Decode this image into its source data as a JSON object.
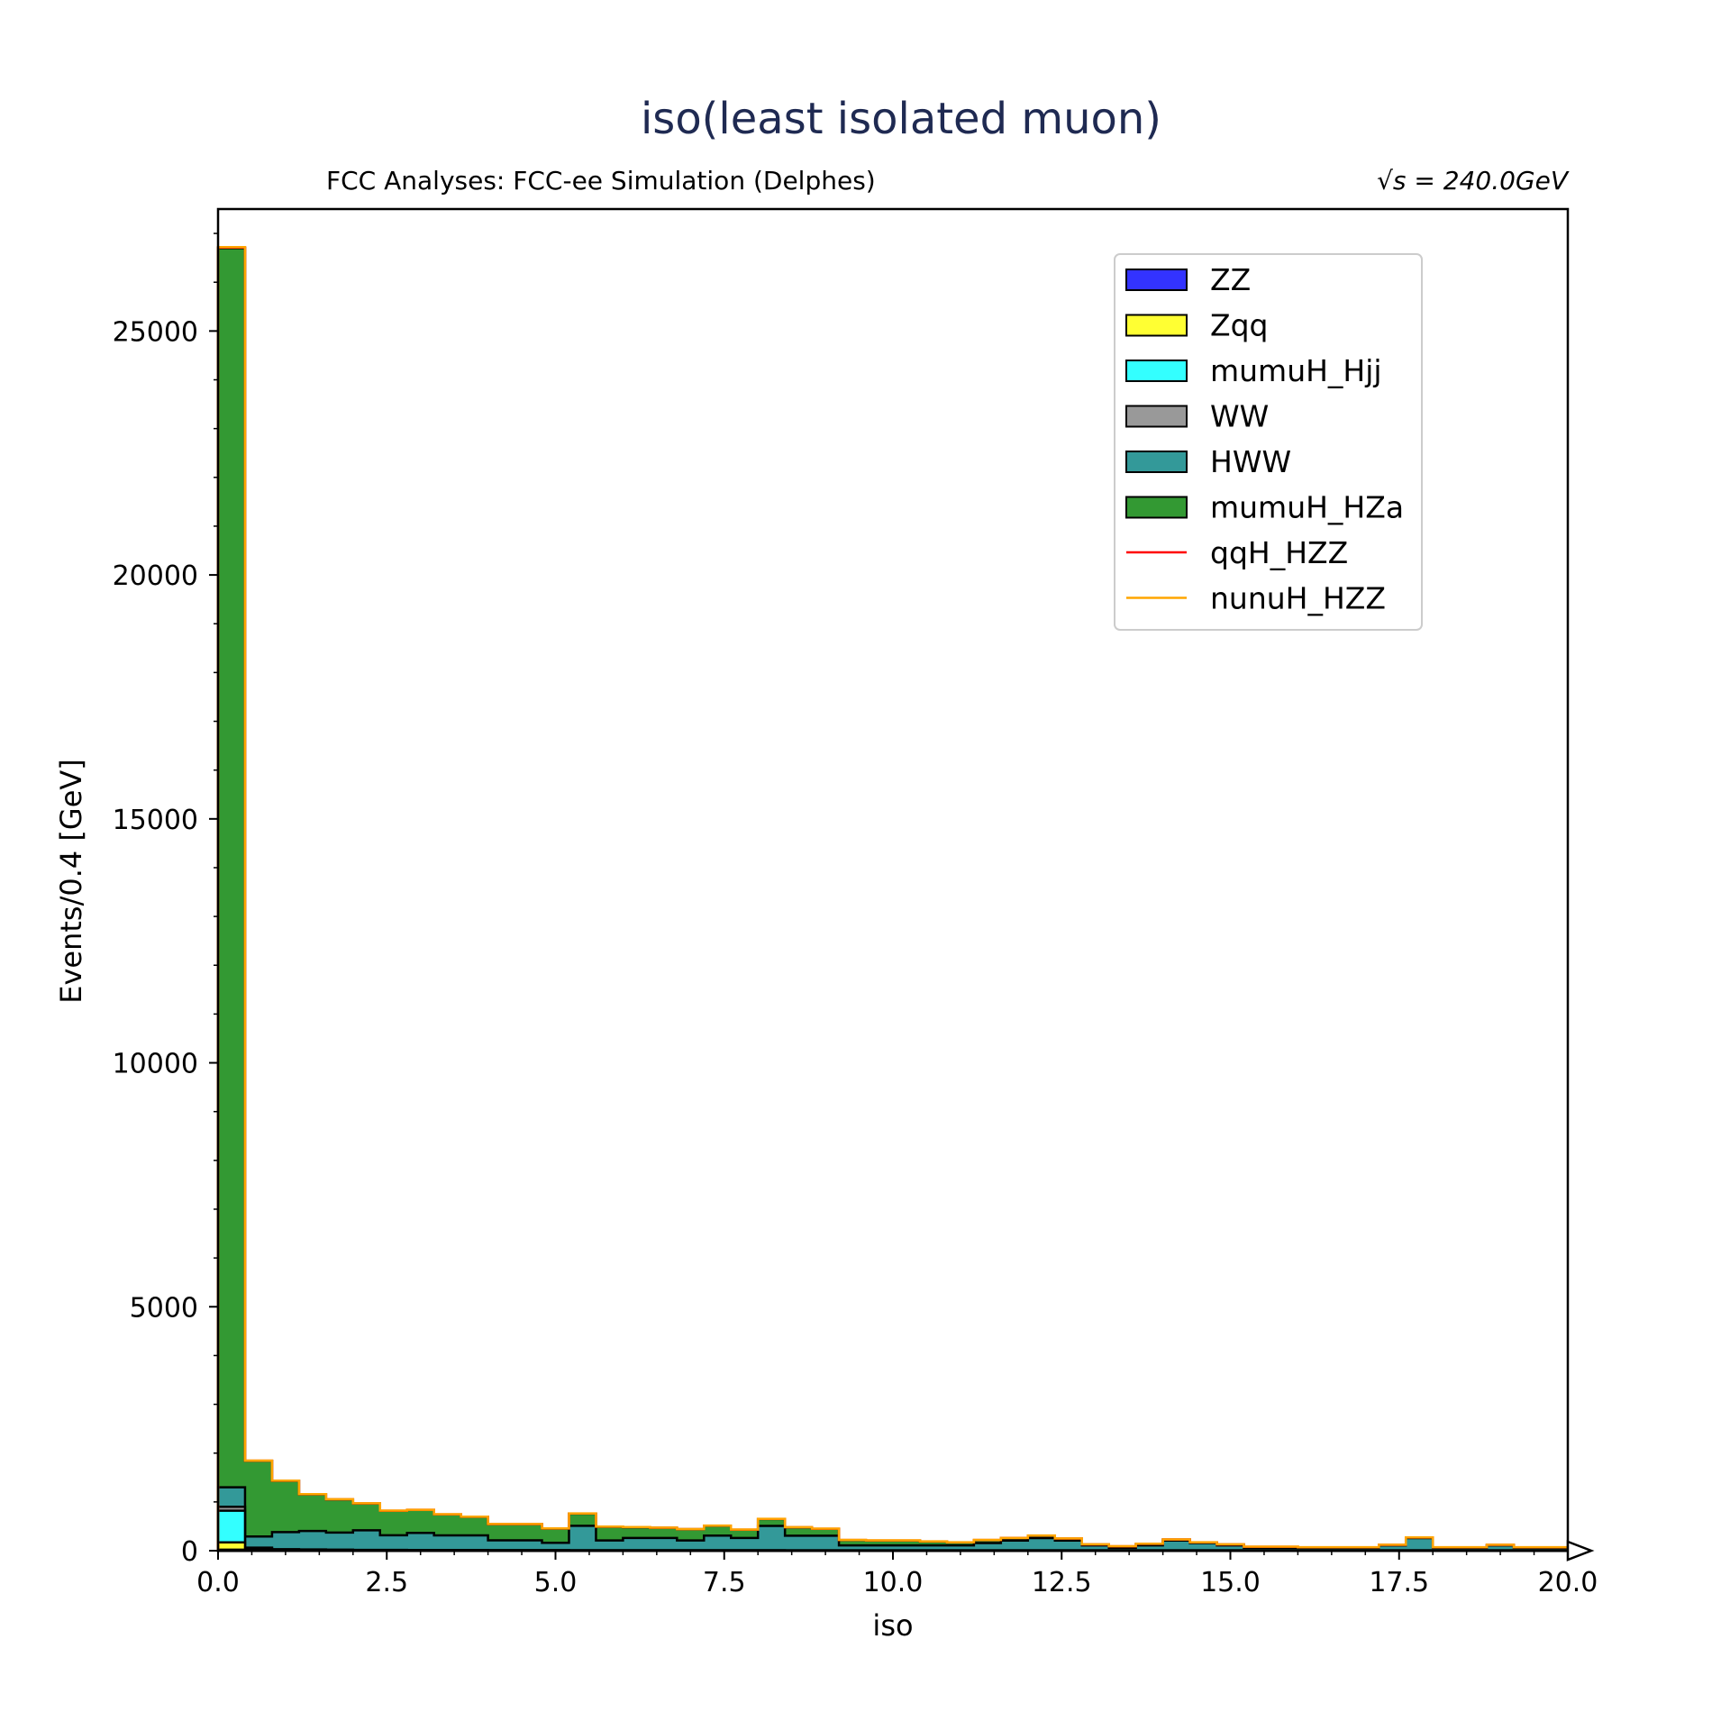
{
  "chart_data": {
    "type": "area",
    "title": "iso(least isolated muon)",
    "subtitle_left": "FCC Analyses: FCC-ee Simulation (Delphes)",
    "subtitle_right": "√s = 240.0GeV",
    "xlabel": "iso",
    "ylabel": "Events/0.4 [GeV]",
    "xlim": [
      0,
      20
    ],
    "ylim": [
      0,
      27500
    ],
    "x_ticks": [
      "0.0",
      "2.5",
      "5.0",
      "7.5",
      "10.0",
      "12.5",
      "15.0",
      "17.5",
      "20.0"
    ],
    "y_ticks": [
      "0",
      "5000",
      "10000",
      "15000",
      "20000",
      "25000"
    ],
    "legend_position": "upper right",
    "bin_width": 0.4,
    "bin_edges_start": 0.0,
    "series": [
      {
        "name": "ZZ",
        "style": "fill",
        "color": "#3333ff",
        "values": [
          20,
          2,
          1,
          1,
          1,
          1,
          1,
          1,
          1,
          1,
          1,
          1,
          1,
          1,
          1,
          1,
          1,
          1,
          1,
          1,
          1,
          1,
          1,
          1,
          1,
          1,
          1,
          1,
          1,
          1,
          1,
          1,
          1,
          1,
          1,
          1,
          1,
          1,
          1,
          1,
          1,
          1,
          1,
          1,
          1,
          1,
          1,
          1,
          1,
          1
        ]
      },
      {
        "name": "Zqq",
        "style": "fill",
        "color": "#ffff33",
        "values": [
          150,
          20,
          10,
          8,
          6,
          5,
          5,
          4,
          4,
          4,
          3,
          3,
          3,
          3,
          3,
          3,
          3,
          3,
          3,
          3,
          3,
          2,
          2,
          2,
          2,
          2,
          2,
          2,
          2,
          2,
          2,
          2,
          2,
          2,
          2,
          2,
          2,
          2,
          2,
          2,
          2,
          2,
          2,
          2,
          2,
          2,
          2,
          2,
          2,
          2
        ]
      },
      {
        "name": "mumuH_Hjj",
        "style": "fill",
        "color": "#33ffff",
        "values": [
          650,
          30,
          15,
          12,
          10,
          8,
          8,
          7,
          6,
          6,
          5,
          5,
          5,
          4,
          4,
          4,
          4,
          4,
          4,
          4,
          3,
          3,
          3,
          3,
          3,
          3,
          3,
          3,
          3,
          3,
          3,
          3,
          3,
          3,
          3,
          3,
          3,
          3,
          3,
          3,
          3,
          3,
          3,
          3,
          3,
          3,
          3,
          3,
          3,
          3
        ]
      },
      {
        "name": "WW",
        "style": "fill",
        "color": "#999999",
        "values": [
          80,
          10,
          5,
          4,
          4,
          3,
          3,
          3,
          3,
          3,
          3,
          3,
          3,
          2,
          2,
          2,
          2,
          2,
          2,
          2,
          2,
          2,
          2,
          2,
          2,
          2,
          2,
          2,
          2,
          2,
          2,
          2,
          2,
          2,
          2,
          2,
          2,
          2,
          2,
          2,
          2,
          2,
          2,
          2,
          2,
          2,
          2,
          2,
          2,
          2
        ]
      },
      {
        "name": "HWW",
        "style": "fill",
        "color": "#339999",
        "values": [
          400,
          230,
          350,
          380,
          350,
          400,
          300,
          350,
          300,
          300,
          200,
          200,
          150,
          500,
          200,
          250,
          250,
          200,
          300,
          250,
          500,
          300,
          300,
          100,
          100,
          100,
          100,
          100,
          150,
          200,
          250,
          200,
          100,
          50,
          100,
          200,
          150,
          100,
          50,
          50,
          50,
          50,
          50,
          100,
          250,
          50,
          50,
          100,
          50,
          50
        ]
      },
      {
        "name": "mumuH_HZa",
        "style": "fill",
        "color": "#339933",
        "values": [
          25400,
          1550,
          1050,
          750,
          680,
          550,
          500,
          470,
          430,
          380,
          330,
          330,
          290,
          250,
          280,
          220,
          210,
          230,
          200,
          170,
          140,
          170,
          140,
          110,
          100,
          100,
          80,
          60,
          60,
          50,
          50,
          40,
          20,
          30,
          30,
          20,
          10,
          20,
          20,
          20,
          10,
          10,
          10,
          10,
          10,
          10,
          10,
          10,
          10,
          10
        ]
      },
      {
        "name": "qqH_HZZ",
        "style": "line",
        "color": "#ff0000",
        "values": [
          10,
          3,
          2,
          2,
          2,
          2,
          2,
          2,
          2,
          2,
          2,
          2,
          2,
          2,
          2,
          2,
          2,
          2,
          2,
          2,
          2,
          2,
          2,
          2,
          2,
          2,
          2,
          2,
          2,
          2,
          2,
          2,
          2,
          2,
          2,
          2,
          2,
          2,
          2,
          2,
          2,
          2,
          2,
          2,
          2,
          2,
          2,
          2,
          2,
          2
        ]
      },
      {
        "name": "nunuH_HZZ",
        "style": "line",
        "color": "#ffa500",
        "values": [
          10,
          3,
          2,
          2,
          2,
          2,
          2,
          2,
          2,
          2,
          2,
          2,
          2,
          2,
          2,
          2,
          2,
          2,
          2,
          2,
          2,
          2,
          2,
          2,
          2,
          2,
          2,
          2,
          2,
          2,
          2,
          2,
          2,
          2,
          2,
          2,
          2,
          2,
          2,
          2,
          2,
          2,
          2,
          2,
          2,
          2,
          2,
          2,
          2,
          2
        ]
      }
    ]
  }
}
